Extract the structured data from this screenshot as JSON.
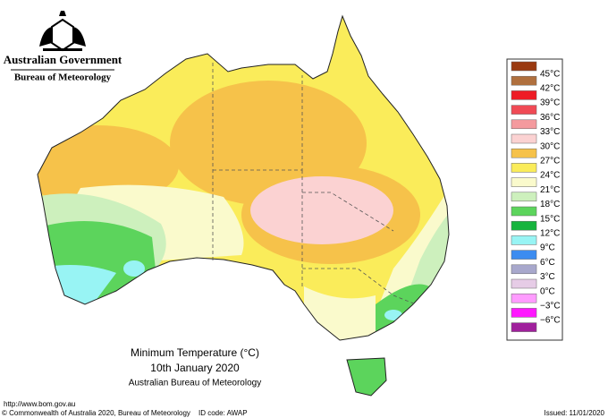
{
  "header": {
    "government": "Australian Government",
    "agency": "Bureau of Meteorology"
  },
  "title": {
    "line1": "Minimum Temperature (°C)",
    "line2": "10th January 2020",
    "line3": "Australian Bureau of Meteorology"
  },
  "legend": {
    "labels": [
      "45°C",
      "42°C",
      "39°C",
      "36°C",
      "33°C",
      "30°C",
      "27°C",
      "24°C",
      "21°C",
      "18°C",
      "15°C",
      "12°C",
      "9°C",
      "6°C",
      "3°C",
      "0°C",
      "−3°C",
      "−6°C"
    ],
    "colors": [
      "#9a3a10",
      "#b0703e",
      "#ee1c25",
      "#f04a55",
      "#f49a9e",
      "#fbd2d2",
      "#f6c24a",
      "#faec5a",
      "#fafacc",
      "#cdf0bd",
      "#5cd45c",
      "#16b43e",
      "#98f4f4",
      "#3c8cf0",
      "#a8a8cc",
      "#e6cce6",
      "#ff9cff",
      "#ff18ff",
      "#a0209c"
    ]
  },
  "footer": {
    "url": "http://www.bom.gov.au",
    "copyright": "© Commonwealth of Australia 2020, Bureau of Meteorology",
    "id_code": "ID code: AWAP",
    "issued": "Issued: 11/01/2020"
  }
}
